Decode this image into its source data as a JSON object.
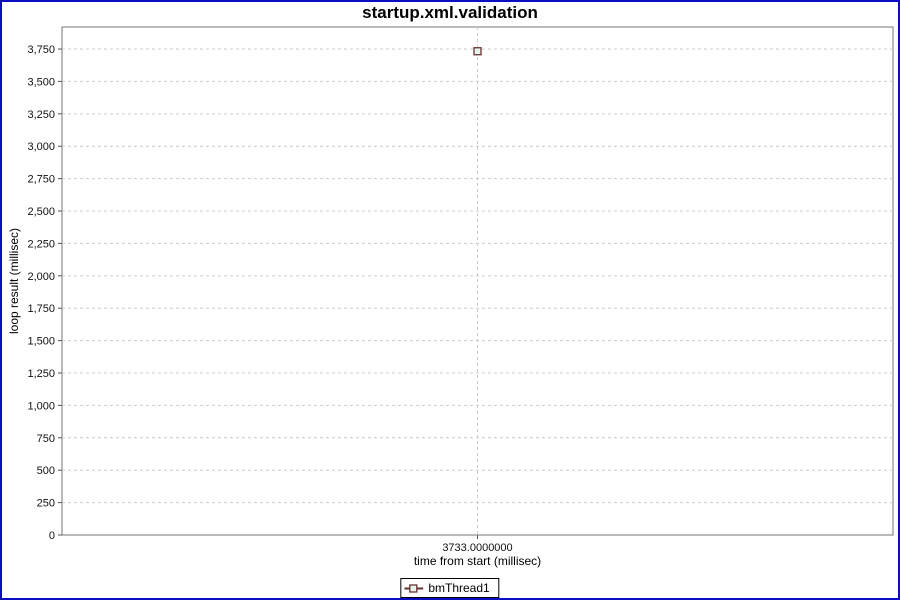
{
  "title": "startup.xml.validation",
  "chart_data": {
    "type": "scatter",
    "title": "startup.xml.validation",
    "xlabel": "time from start (millisec)",
    "ylabel": "loop result (millisec)",
    "xlim": [
      3713,
      3753
    ],
    "ylim": [
      0,
      3920
    ],
    "grid": true,
    "legend_position": "bottom-center",
    "x_ticks": [
      {
        "value": 3733,
        "label": "3733.0000000"
      }
    ],
    "y_ticks": [
      {
        "value": 0,
        "label": "0"
      },
      {
        "value": 250,
        "label": "250"
      },
      {
        "value": 500,
        "label": "500"
      },
      {
        "value": 750,
        "label": "750"
      },
      {
        "value": 1000,
        "label": "1,000"
      },
      {
        "value": 1250,
        "label": "1,250"
      },
      {
        "value": 1500,
        "label": "1,500"
      },
      {
        "value": 1750,
        "label": "1,750"
      },
      {
        "value": 2000,
        "label": "2,000"
      },
      {
        "value": 2250,
        "label": "2,250"
      },
      {
        "value": 2500,
        "label": "2,500"
      },
      {
        "value": 2750,
        "label": "2,750"
      },
      {
        "value": 3000,
        "label": "3,000"
      },
      {
        "value": 3250,
        "label": "3,250"
      },
      {
        "value": 3500,
        "label": "3,500"
      },
      {
        "value": 3750,
        "label": "3,750"
      }
    ],
    "series": [
      {
        "name": "bmThread1",
        "marker": "square",
        "color": "#663333",
        "marker_fill": "#e6f2ea",
        "points": [
          {
            "x": 3733,
            "y": 3733
          }
        ]
      }
    ]
  },
  "colors": {
    "frame_border": "#0d0dc2",
    "plot_border": "#757575",
    "gridline": "#cccccc",
    "tick": "#555555",
    "background": "#ffffff",
    "text": "#000000"
  },
  "legend": {
    "items": [
      {
        "label": "bmThread1"
      }
    ]
  }
}
